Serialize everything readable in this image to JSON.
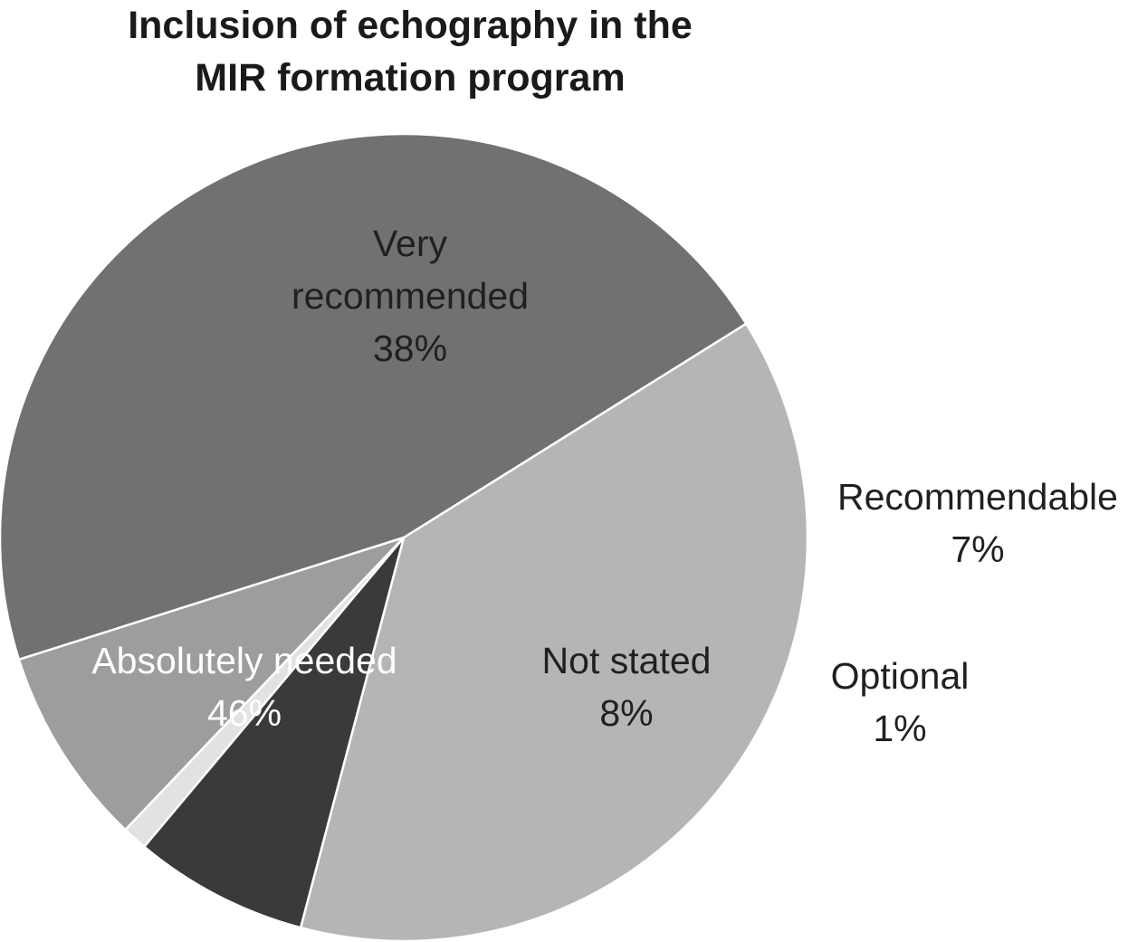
{
  "chart_data": {
    "type": "pie",
    "title": "Inclusion of echography in the MIR formation program",
    "title_lines": [
      "Inclusion of echography in the",
      "MIR formation program"
    ],
    "slices": [
      {
        "id": "very-recommended",
        "label_lines": [
          "Very",
          "recommended"
        ],
        "value": 38,
        "value_label": "38%",
        "color": "#b4b5b7",
        "label_color": "#231f20"
      },
      {
        "id": "recommendable",
        "label_lines": [
          "Recommendable"
        ],
        "value": 7,
        "value_label": "7%",
        "color": "#3a3a3b",
        "label_color": "#231f20"
      },
      {
        "id": "optional",
        "label_lines": [
          "Optional"
        ],
        "value": 1,
        "value_label": "1%",
        "color": "#e1e2e3",
        "label_color": "#231f20"
      },
      {
        "id": "not-stated",
        "label_lines": [
          "Not stated"
        ],
        "value": 8,
        "value_label": "8%",
        "color": "#9c9d9f",
        "label_color": "#231f20"
      },
      {
        "id": "absolutely-needed",
        "label_lines": [
          "Absolutely needed"
        ],
        "value": 46,
        "value_label": "46%",
        "color": "#707173",
        "label_color": "#ffffff"
      }
    ]
  }
}
